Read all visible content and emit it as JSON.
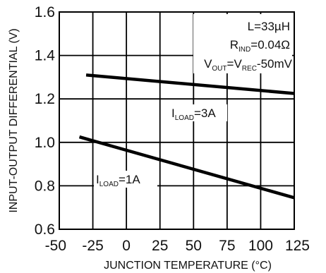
{
  "chart_data": {
    "type": "line",
    "title": "",
    "xlabel": "JUNCTION TEMPERATURE (°C)",
    "ylabel": "INPUT-OUTPUT DIFFERENTIAL (V)",
    "xlim": [
      -50,
      125
    ],
    "ylim": [
      0.6,
      1.6
    ],
    "x_ticks": [
      "-50",
      "-25",
      "0",
      "25",
      "50",
      "75",
      "100",
      "125"
    ],
    "y_ticks": [
      "0.6",
      "0.8",
      "1.0",
      "1.2",
      "1.4",
      "1.6"
    ],
    "grid": true,
    "conditions": {
      "line1": {
        "main": "L=33µH"
      },
      "line2": {
        "main": "R",
        "sub": "IND",
        "tail": "=0.04Ω"
      },
      "line3": {
        "main": "V",
        "sub1": "OUT",
        "mid": "=V",
        "sub2": "REC",
        "tail": "-50mV"
      }
    },
    "series": [
      {
        "label": {
          "main": "I",
          "sub": "LOAD",
          "tail": "=3A"
        },
        "x": [
          -30,
          125
        ],
        "y": [
          1.31,
          1.225
        ]
      },
      {
        "label": {
          "main": "I",
          "sub": "LOAD",
          "tail": "=1A"
        },
        "x": [
          -35,
          125
        ],
        "y": [
          1.025,
          0.745
        ]
      }
    ]
  }
}
